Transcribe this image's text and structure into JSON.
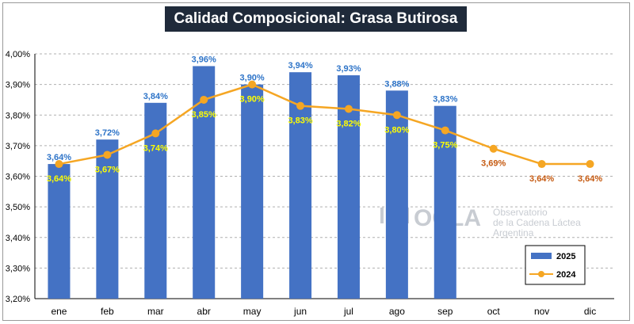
{
  "title": "Calidad Composicional: Grasa Butirosa",
  "watermark": {
    "brand": "OCLA",
    "line1": "Observatorio",
    "line2": "de la Cadena Láctea",
    "line3": "Argentina"
  },
  "colors": {
    "bar2025": "#4472c4",
    "line2024": "#f5a623",
    "label2025": "#2e74c8",
    "label2024_inside": "#ffff00",
    "label2024_outside": "#c55a11"
  },
  "chart_data": {
    "type": "bar",
    "categories": [
      "ene",
      "feb",
      "mar",
      "abr",
      "may",
      "jun",
      "jul",
      "ago",
      "sep",
      "oct",
      "nov",
      "dic"
    ],
    "series": [
      {
        "name": "2025",
        "type": "bar",
        "values": [
          3.64,
          3.72,
          3.84,
          3.96,
          3.9,
          3.94,
          3.93,
          3.88,
          3.83,
          null,
          null,
          null
        ],
        "labels": [
          "3,64%",
          "3,72%",
          "3,84%",
          "3,96%",
          "3,90%",
          "3,94%",
          "3,93%",
          "3,88%",
          "3,83%",
          null,
          null,
          null
        ]
      },
      {
        "name": "2024",
        "type": "line",
        "values": [
          3.64,
          3.67,
          3.74,
          3.85,
          3.9,
          3.83,
          3.82,
          3.8,
          3.75,
          3.69,
          3.64,
          3.64
        ],
        "labels": [
          "3,64%",
          "3,67%",
          "3,74%",
          "3,85%",
          "3,90%",
          "3,83%",
          "3,82%",
          "3,80%",
          "3,75%",
          "3,69%",
          "3,64%",
          "3,64%"
        ]
      }
    ],
    "ylim": [
      3.2,
      4.0
    ],
    "yticks": [
      3.2,
      3.3,
      3.4,
      3.5,
      3.6,
      3.7,
      3.8,
      3.9,
      4.0
    ],
    "ytick_labels": [
      "3,20%",
      "3,30%",
      "3,40%",
      "3,50%",
      "3,60%",
      "3,70%",
      "3,80%",
      "3,90%",
      "4,00%"
    ],
    "grid": true,
    "legend_position": "bottom-right",
    "xlabel": "",
    "ylabel": ""
  }
}
